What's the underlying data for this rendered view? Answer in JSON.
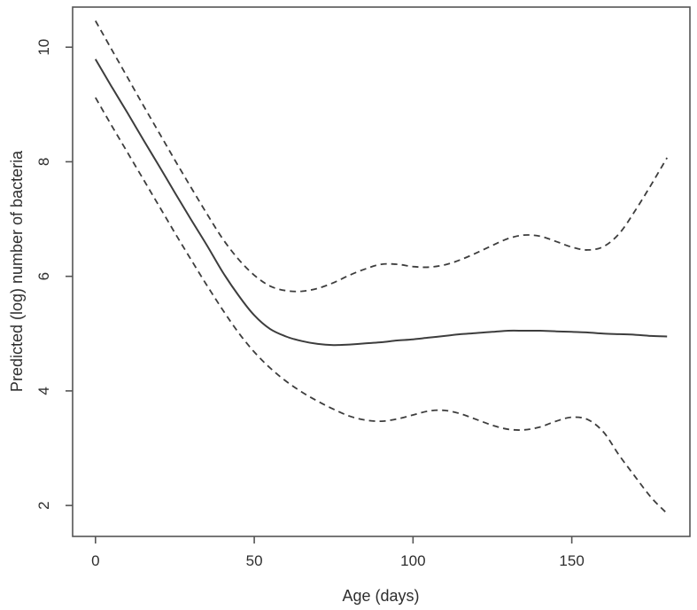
{
  "figure": {
    "background": "#ffffff",
    "curve_color": "#3d3d3d",
    "axis_color": "#555555",
    "text_color": "#2e2e2e"
  },
  "chart_data": {
    "type": "line",
    "title": "",
    "xlabel": "Age (days)",
    "ylabel": "Predicted (log) number of bacteria",
    "x_ticks": [
      0,
      50,
      100,
      150
    ],
    "y_ticks": [
      2,
      4,
      6,
      8,
      10
    ],
    "xlim": [
      -7.2,
      187.2
    ],
    "ylim": [
      1.46,
      10.7
    ],
    "grid": false,
    "legend": "none",
    "x": [
      0,
      5,
      10,
      15,
      20,
      25,
      30,
      35,
      40,
      45,
      50,
      55,
      60,
      65,
      70,
      75,
      80,
      85,
      90,
      95,
      100,
      105,
      110,
      115,
      120,
      125,
      130,
      135,
      140,
      145,
      150,
      155,
      160,
      165,
      170,
      175,
      180
    ],
    "series": [
      {
        "name": "fitted-curve",
        "style": "solid",
        "values": [
          9.79,
          9.32,
          8.86,
          8.39,
          7.93,
          7.46,
          7.0,
          6.55,
          6.08,
          5.67,
          5.32,
          5.08,
          4.95,
          4.87,
          4.82,
          4.8,
          4.81,
          4.83,
          4.85,
          4.88,
          4.9,
          4.93,
          4.96,
          4.99,
          5.01,
          5.03,
          5.05,
          5.05,
          5.05,
          5.04,
          5.03,
          5.02,
          5.0,
          4.99,
          4.98,
          4.96,
          4.95
        ]
      },
      {
        "name": "upper-confidence-band",
        "style": "dashed",
        "values": [
          10.46,
          9.97,
          9.48,
          8.99,
          8.51,
          8.03,
          7.56,
          7.1,
          6.66,
          6.3,
          6.02,
          5.83,
          5.75,
          5.74,
          5.79,
          5.89,
          6.02,
          6.13,
          6.21,
          6.21,
          6.17,
          6.16,
          6.2,
          6.29,
          6.41,
          6.54,
          6.66,
          6.72,
          6.7,
          6.61,
          6.51,
          6.46,
          6.52,
          6.75,
          7.15,
          7.6,
          8.07
        ]
      },
      {
        "name": "lower-confidence-band",
        "style": "dashed",
        "values": [
          9.12,
          8.64,
          8.17,
          7.7,
          7.23,
          6.76,
          6.3,
          5.85,
          5.42,
          5.02,
          4.68,
          4.4,
          4.17,
          3.98,
          3.82,
          3.68,
          3.56,
          3.49,
          3.47,
          3.51,
          3.58,
          3.65,
          3.66,
          3.6,
          3.5,
          3.4,
          3.33,
          3.32,
          3.37,
          3.47,
          3.54,
          3.5,
          3.28,
          2.87,
          2.5,
          2.14,
          1.86
        ]
      }
    ]
  }
}
